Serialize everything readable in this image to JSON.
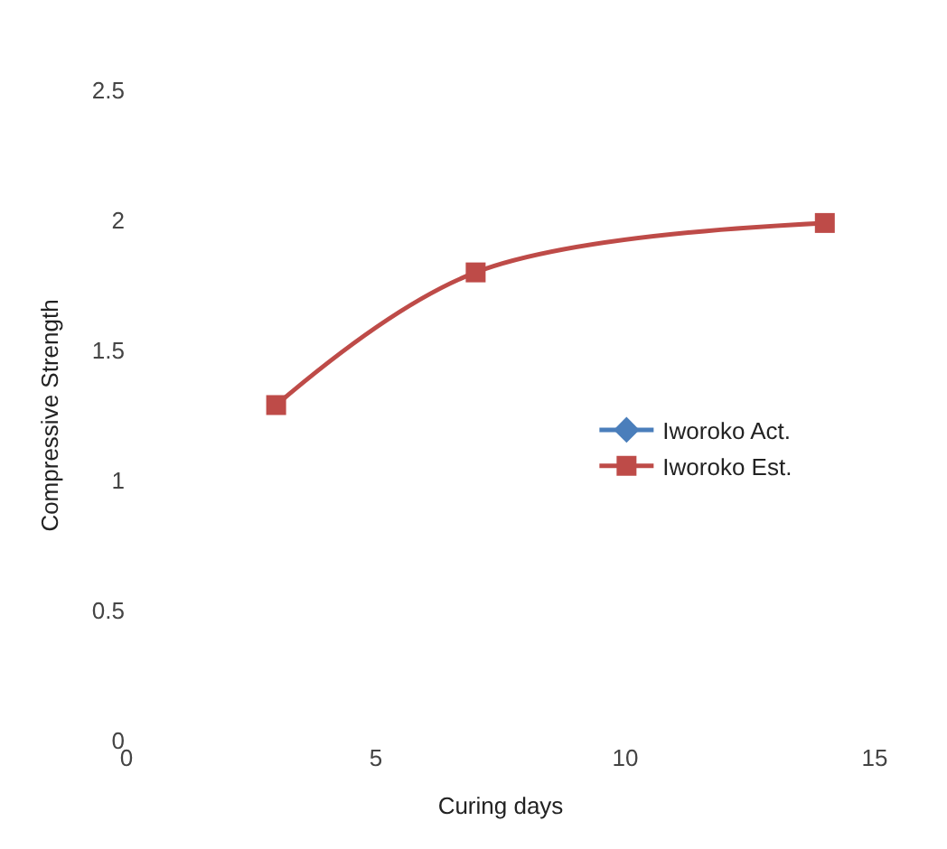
{
  "chart_data": {
    "type": "line",
    "xlabel": "Curing days",
    "ylabel": "Compressive Strength",
    "x": [
      3,
      7,
      14
    ],
    "series": [
      {
        "name": "Iworoko Act.",
        "color": "#4a7ebb",
        "marker": "diamond",
        "values": [
          null,
          null,
          null
        ]
      },
      {
        "name": "Iworoko Est.",
        "color": "#be4b48",
        "marker": "square",
        "values": [
          1.29,
          1.8,
          1.99
        ]
      }
    ],
    "xlim": [
      0,
      15
    ],
    "xticks": [
      0,
      5,
      10,
      15
    ],
    "ylim": [
      0,
      2.5
    ],
    "yticks": [
      0,
      0.5,
      1,
      1.5,
      2,
      2.5
    ],
    "legend": "right",
    "line_style": "solid"
  }
}
